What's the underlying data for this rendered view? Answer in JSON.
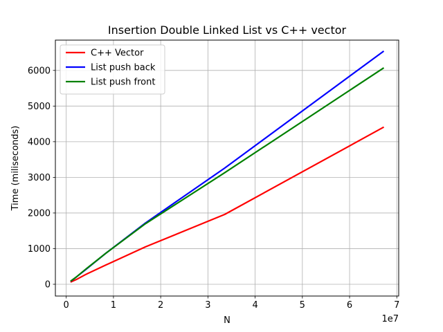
{
  "chart_data": {
    "type": "line",
    "title": "Insertion Double Linked List vs C++ vector",
    "xlabel": "N",
    "ylabel": "Time (miliseconds)",
    "x_offset_label": "1e7",
    "xlim": [
      -2300000,
      70400000
    ],
    "ylim": [
      -330,
      6850
    ],
    "x_ticks": [
      0,
      10000000,
      20000000,
      30000000,
      40000000,
      50000000,
      60000000,
      70000000
    ],
    "x_tick_labels": [
      "0",
      "1",
      "2",
      "3",
      "4",
      "5",
      "6",
      "7"
    ],
    "y_ticks": [
      0,
      1000,
      2000,
      3000,
      4000,
      5000,
      6000
    ],
    "y_tick_labels": [
      "0",
      "1000",
      "2000",
      "3000",
      "4000",
      "5000",
      "6000"
    ],
    "grid": true,
    "legend_position": "top-left",
    "x": [
      1048576,
      2097152,
      4194304,
      8388608,
      16777216,
      33554432,
      67108864
    ],
    "series": [
      {
        "name": "C++ Vector",
        "color": "#ff0000",
        "values": [
          70,
          130,
          280,
          540,
          1050,
          1960,
          4400
        ]
      },
      {
        "name": "List push back",
        "color": "#0000ff",
        "values": [
          95,
          200,
          420,
          870,
          1720,
          3260,
          6530
        ]
      },
      {
        "name": "List push front",
        "color": "#008000",
        "values": [
          100,
          200,
          430,
          870,
          1700,
          3130,
          6060
        ]
      }
    ]
  }
}
